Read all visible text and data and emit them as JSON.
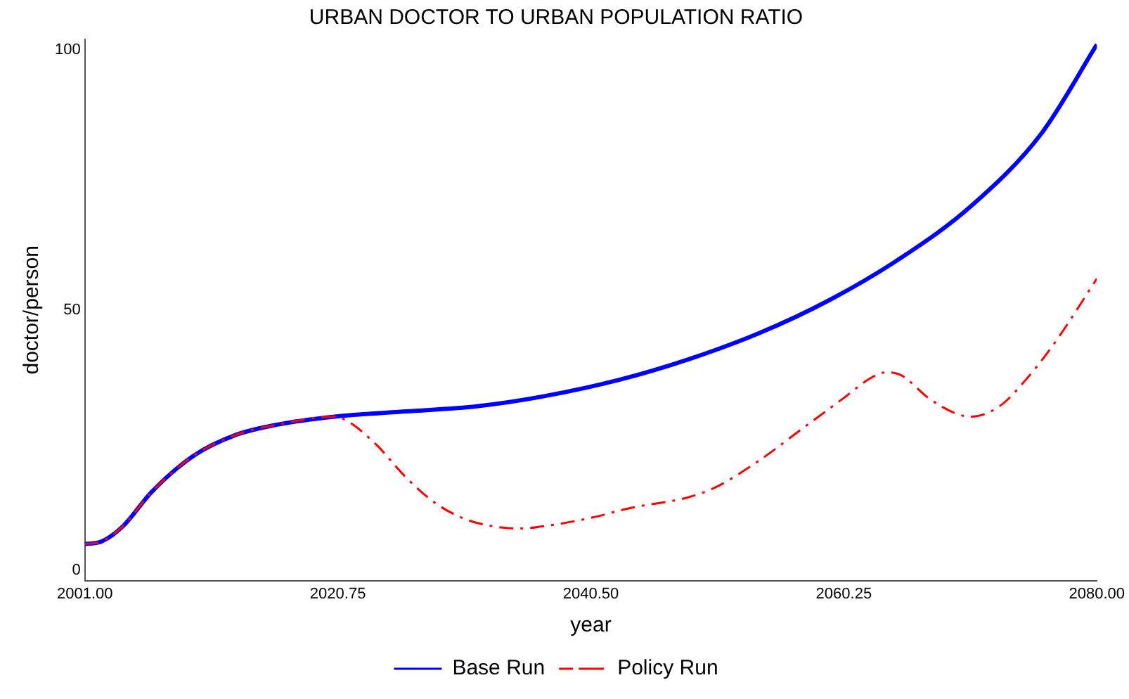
{
  "chart_data": {
    "type": "line",
    "title": "URBAN DOCTOR TO URBAN POPULATION RATIO",
    "xlabel": "year",
    "ylabel": "doctor/person",
    "x": [
      2001,
      2002.3,
      2004,
      2006.2,
      2009.5,
      2012.8,
      2016.1,
      2020.5,
      2026,
      2031.6,
      2037,
      2042.6,
      2048.1,
      2053.6,
      2059.2,
      2064.7,
      2070.2,
      2075.7,
      2080
    ],
    "xlim": [
      2001,
      2080
    ],
    "xticks": [
      {
        "value": 2001,
        "label": "2001.00"
      },
      {
        "value": 2020.75,
        "label": "2020.75"
      },
      {
        "value": 2040.5,
        "label": "2040.50"
      },
      {
        "value": 2060.25,
        "label": "2060.25"
      },
      {
        "value": 2080,
        "label": "2080.00"
      }
    ],
    "ylim": [
      -2,
      102
    ],
    "yticks": [
      0,
      50,
      100
    ],
    "grid": false,
    "legend": "bottom",
    "marker": "none",
    "series": [
      {
        "name": "Base Run",
        "color": "#0000ff",
        "line_style": "solid",
        "values": [
          5,
          5.5,
          8.5,
          15,
          22,
          26,
          28,
          29.5,
          30.5,
          31.5,
          33.5,
          36.5,
          40.5,
          45.5,
          52,
          60,
          70,
          84,
          101
        ]
      },
      {
        "name": "Policy Run",
        "color": "#ff0000",
        "line_style": "dashed",
        "x": [
          2001,
          2002.3,
          2004,
          2006.2,
          2009.5,
          2012.8,
          2016.1,
          2020.5,
          2021.6,
          2023.8,
          2026,
          2028.3,
          2030.5,
          2032.7,
          2034.9,
          2037,
          2040.4,
          2043.7,
          2048.1,
          2050.3,
          2053.6,
          2056.9,
          2060.2,
          2062.4,
          2063.5,
          2064.7,
          2066.9,
          2069.1,
          2070.2,
          2072.4,
          2074.6,
          2076.8,
          2080
        ],
        "values": [
          5,
          5.5,
          8.5,
          15,
          22,
          26,
          28,
          29.5,
          28.5,
          24,
          18,
          13,
          10,
          8.5,
          8,
          8.5,
          10,
          12,
          14,
          16,
          21,
          27,
          33,
          37,
          38,
          37.5,
          33,
          30,
          29.5,
          31.5,
          37,
          44,
          56
        ]
      }
    ]
  }
}
